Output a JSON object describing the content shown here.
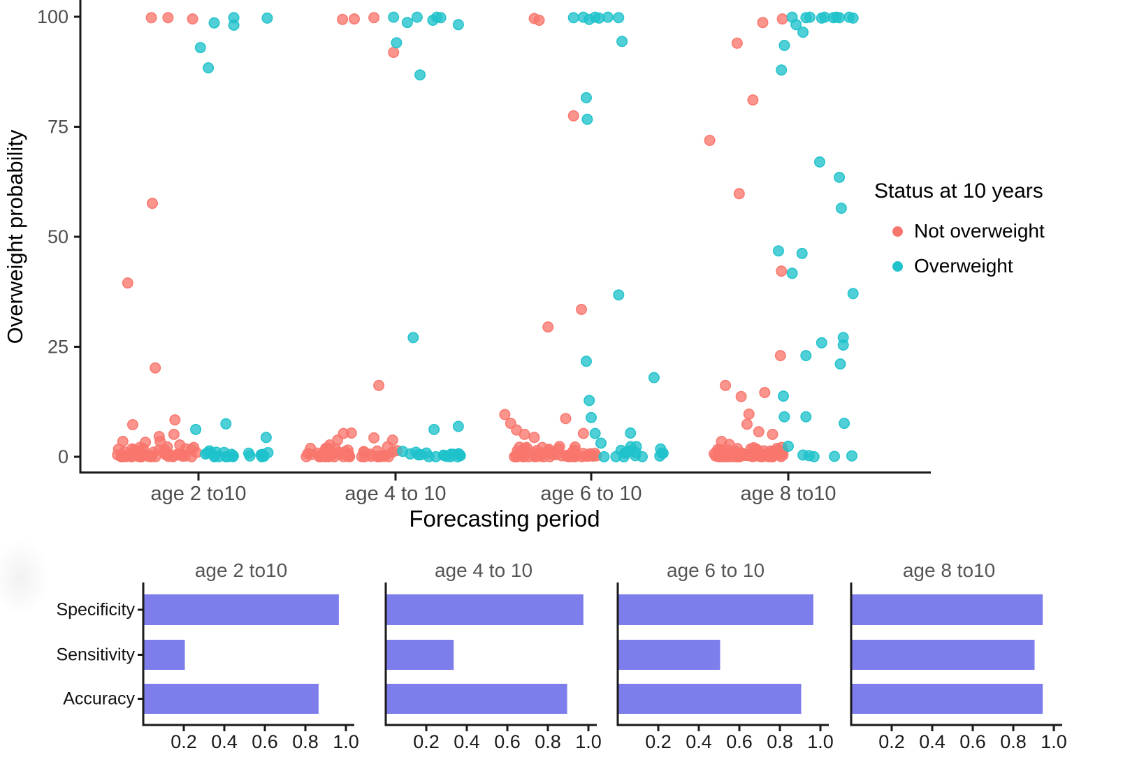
{
  "chart_data": [
    {
      "type": "scatter",
      "title": "",
      "xlabel": "Forecasting period",
      "ylabel": "Overweight probability",
      "ylim": [
        0,
        100
      ],
      "yticks": [
        0,
        25,
        50,
        75,
        100
      ],
      "grid": false,
      "categories": [
        "age 2 to10",
        "age 4 to 10",
        "age 6 to 10",
        "age 8 to10"
      ],
      "legend": {
        "title": "Status at 10 years",
        "position": "right",
        "items": [
          {
            "label": "Not overweight",
            "color": "#F8766D"
          },
          {
            "label": "Overweight",
            "color": "#1FC2CB"
          }
        ]
      },
      "series": [
        {
          "name": "Not overweight",
          "color": "#F8766D",
          "points": [
            [
              0,
              -0.24,
              99.8
            ],
            [
              0,
              -0.155,
              99.8
            ],
            [
              0,
              -0.03,
              99.5
            ],
            [
              0,
              -0.235,
              57.6
            ],
            [
              0,
              -0.36,
              39.5
            ],
            [
              0,
              -0.22,
              20.2
            ],
            [
              0,
              -0.335,
              7.3
            ],
            [
              0,
              -0.12,
              8.4
            ],
            [
              0,
              -0.125,
              5.1
            ],
            [
              0,
              -0.2,
              4.6
            ],
            [
              0,
              -0.195,
              3.5
            ],
            [
              0,
              -0.27,
              3.3
            ],
            [
              0,
              -0.385,
              3.5
            ],
            [
              0,
              -0.095,
              2.7
            ],
            [
              1,
              -0.27,
              99.4
            ],
            [
              1,
              -0.21,
              99.5
            ],
            [
              1,
              -0.11,
              99.8
            ],
            [
              1,
              -0.01,
              91.9
            ],
            [
              1,
              -0.085,
              16.2
            ],
            [
              1,
              -0.335,
              2.7
            ],
            [
              1,
              -0.295,
              3.8
            ],
            [
              1,
              -0.265,
              5.3
            ],
            [
              1,
              -0.225,
              5.4
            ],
            [
              1,
              -0.11,
              4.3
            ],
            [
              1,
              -0.015,
              3.8
            ],
            [
              1,
              -0.04,
              2.3
            ],
            [
              2,
              -0.29,
              99.6
            ],
            [
              2,
              -0.265,
              99.2
            ],
            [
              2,
              -0.09,
              77.5
            ],
            [
              2,
              -0.05,
              33.5
            ],
            [
              2,
              -0.22,
              29.5
            ],
            [
              2,
              -0.44,
              9.6
            ],
            [
              2,
              -0.41,
              7.6
            ],
            [
              2,
              -0.38,
              6.1
            ],
            [
              2,
              -0.34,
              5.1
            ],
            [
              2,
              -0.29,
              4.4
            ],
            [
              2,
              -0.13,
              8.7
            ],
            [
              2,
              -0.04,
              5.3
            ],
            [
              3,
              -0.13,
              98.7
            ],
            [
              3,
              -0.03,
              99.5
            ],
            [
              3,
              -0.26,
              94.0
            ],
            [
              3,
              -0.18,
              81.1
            ],
            [
              3,
              -0.4,
              71.9
            ],
            [
              3,
              -0.25,
              59.8
            ],
            [
              3,
              -0.035,
              42.2
            ],
            [
              3,
              -0.04,
              23.0
            ],
            [
              3,
              -0.32,
              16.2
            ],
            [
              3,
              -0.24,
              13.7
            ],
            [
              3,
              -0.12,
              14.6
            ],
            [
              3,
              -0.2,
              9.7
            ],
            [
              3,
              -0.21,
              7.4
            ],
            [
              3,
              -0.15,
              5.7
            ],
            [
              3,
              -0.08,
              5.1
            ],
            [
              3,
              -0.34,
              3.5
            ],
            [
              3,
              -0.3,
              2.8
            ]
          ],
          "clusters": [
            {
              "cat": 0,
              "off": [
                -0.42,
                -0.01
              ],
              "ymax": 2.3,
              "count": 48
            },
            {
              "cat": 1,
              "off": [
                -0.46,
                0.01
              ],
              "ymax": 2.3,
              "count": 52
            },
            {
              "cat": 2,
              "off": [
                -0.43,
                0.03
              ],
              "ymax": 2.4,
              "count": 56
            },
            {
              "cat": 3,
              "off": [
                -0.38,
                -0.02
              ],
              "ymax": 2.2,
              "count": 62
            }
          ]
        },
        {
          "name": "Overweight",
          "color": "#1FC2CB",
          "points": [
            [
              0,
              0.08,
              98.6
            ],
            [
              0,
              0.18,
              99.8
            ],
            [
              0,
              0.18,
              98.1
            ],
            [
              0,
              0.35,
              99.7
            ],
            [
              0,
              0.01,
              93.0
            ],
            [
              0,
              0.05,
              88.4
            ],
            [
              0,
              -0.014,
              6.2
            ],
            [
              0,
              0.14,
              7.5
            ],
            [
              0,
              0.345,
              4.4
            ],
            [
              1,
              -0.01,
              99.9
            ],
            [
              1,
              0.06,
              98.7
            ],
            [
              1,
              0.11,
              99.9
            ],
            [
              1,
              0.19,
              99.2
            ],
            [
              1,
              0.21,
              99.9
            ],
            [
              1,
              0.23,
              99.8
            ],
            [
              1,
              0.32,
              98.2
            ],
            [
              1,
              0.005,
              94.1
            ],
            [
              1,
              0.125,
              86.8
            ],
            [
              1,
              0.09,
              27.1
            ],
            [
              1,
              0.196,
              6.2
            ],
            [
              1,
              0.32,
              6.9
            ],
            [
              2,
              -0.09,
              99.8
            ],
            [
              2,
              -0.04,
              99.9
            ],
            [
              2,
              -0.01,
              99.4
            ],
            [
              2,
              0.02,
              99.9
            ],
            [
              2,
              0.04,
              99.7
            ],
            [
              2,
              0.085,
              99.9
            ],
            [
              2,
              0.14,
              99.8
            ],
            [
              2,
              0.157,
              94.4
            ],
            [
              2,
              -0.025,
              81.6
            ],
            [
              2,
              -0.02,
              76.7
            ],
            [
              2,
              0.14,
              36.8
            ],
            [
              2,
              -0.025,
              21.7
            ],
            [
              2,
              0.32,
              18.0
            ],
            [
              2,
              -0.01,
              12.8
            ],
            [
              2,
              0.0,
              8.9
            ],
            [
              2,
              0.02,
              5.3
            ],
            [
              2,
              0.05,
              3.1
            ],
            [
              2,
              0.2,
              5.4
            ],
            [
              2,
              0.23,
              2.3
            ],
            [
              3,
              0.02,
              99.9
            ],
            [
              3,
              0.09,
              99.8
            ],
            [
              3,
              0.11,
              99.9
            ],
            [
              3,
              0.17,
              99.7
            ],
            [
              3,
              0.185,
              99.9
            ],
            [
              3,
              0.23,
              99.8
            ],
            [
              3,
              0.245,
              99.9
            ],
            [
              3,
              0.26,
              99.8
            ],
            [
              3,
              0.31,
              99.9
            ],
            [
              3,
              0.33,
              99.7
            ],
            [
              3,
              0.04,
              98.2
            ],
            [
              3,
              0.075,
              96.5
            ],
            [
              3,
              -0.02,
              93.5
            ],
            [
              3,
              -0.035,
              87.9
            ],
            [
              3,
              0.16,
              67.0
            ],
            [
              3,
              0.26,
              63.5
            ],
            [
              3,
              0.27,
              56.5
            ],
            [
              3,
              -0.05,
              46.8
            ],
            [
              3,
              0.07,
              46.2
            ],
            [
              3,
              0.02,
              41.7
            ],
            [
              3,
              0.33,
              37.1
            ],
            [
              3,
              0.28,
              27.1
            ],
            [
              3,
              0.17,
              25.9
            ],
            [
              3,
              0.28,
              25.4
            ],
            [
              3,
              0.09,
              23.0
            ],
            [
              3,
              0.265,
              21.1
            ],
            [
              3,
              -0.025,
              13.8
            ],
            [
              3,
              -0.02,
              9.1
            ],
            [
              3,
              0.09,
              9.1
            ],
            [
              3,
              0.285,
              7.6
            ],
            [
              3,
              0.0,
              2.4
            ],
            [
              3,
              0.075,
              0.4
            ],
            [
              3,
              0.235,
              0.1
            ],
            [
              3,
              0.324,
              0.2
            ]
          ],
          "clusters": [
            {
              "cat": 0,
              "off": [
                0.03,
                0.37
              ],
              "ymax": 1.4,
              "count": 22
            },
            {
              "cat": 1,
              "off": [
                0.02,
                0.35
              ],
              "ymax": 1.3,
              "count": 18
            },
            {
              "cat": 2,
              "off": [
                0.06,
                0.39
              ],
              "ymax": 2.6,
              "count": 15
            },
            {
              "cat": 3,
              "off": [
                0.1,
                0.2
              ],
              "ymax": 0.8,
              "count": 2
            }
          ]
        }
      ]
    },
    {
      "type": "bar",
      "orientation": "horizontal",
      "panels": [
        "age 2 to10",
        "age 4 to 10",
        "age 6 to 10",
        "age 8 to10"
      ],
      "rows": [
        "Specificity",
        "Sensitivity",
        "Accuracy"
      ],
      "xtick_labels": [
        "0.2",
        "0.4",
        "0.6",
        "0.8",
        "1.0"
      ],
      "xticks": [
        0.2,
        0.4,
        0.6,
        0.8,
        1.0
      ],
      "xlim": [
        0,
        1.0
      ],
      "bar_color": "#7D7DEB",
      "values": [
        [
          0.96,
          0.2,
          0.86
        ],
        [
          0.97,
          0.33,
          0.89
        ],
        [
          0.96,
          0.5,
          0.9
        ],
        [
          0.94,
          0.9,
          0.94
        ]
      ]
    }
  ],
  "style": {
    "axis_color": "#1a1a1a",
    "tick_text_color": "#4d4d4d",
    "panel_title_color": "#555555",
    "bar_tick_text_color": "#1a1a1a"
  }
}
